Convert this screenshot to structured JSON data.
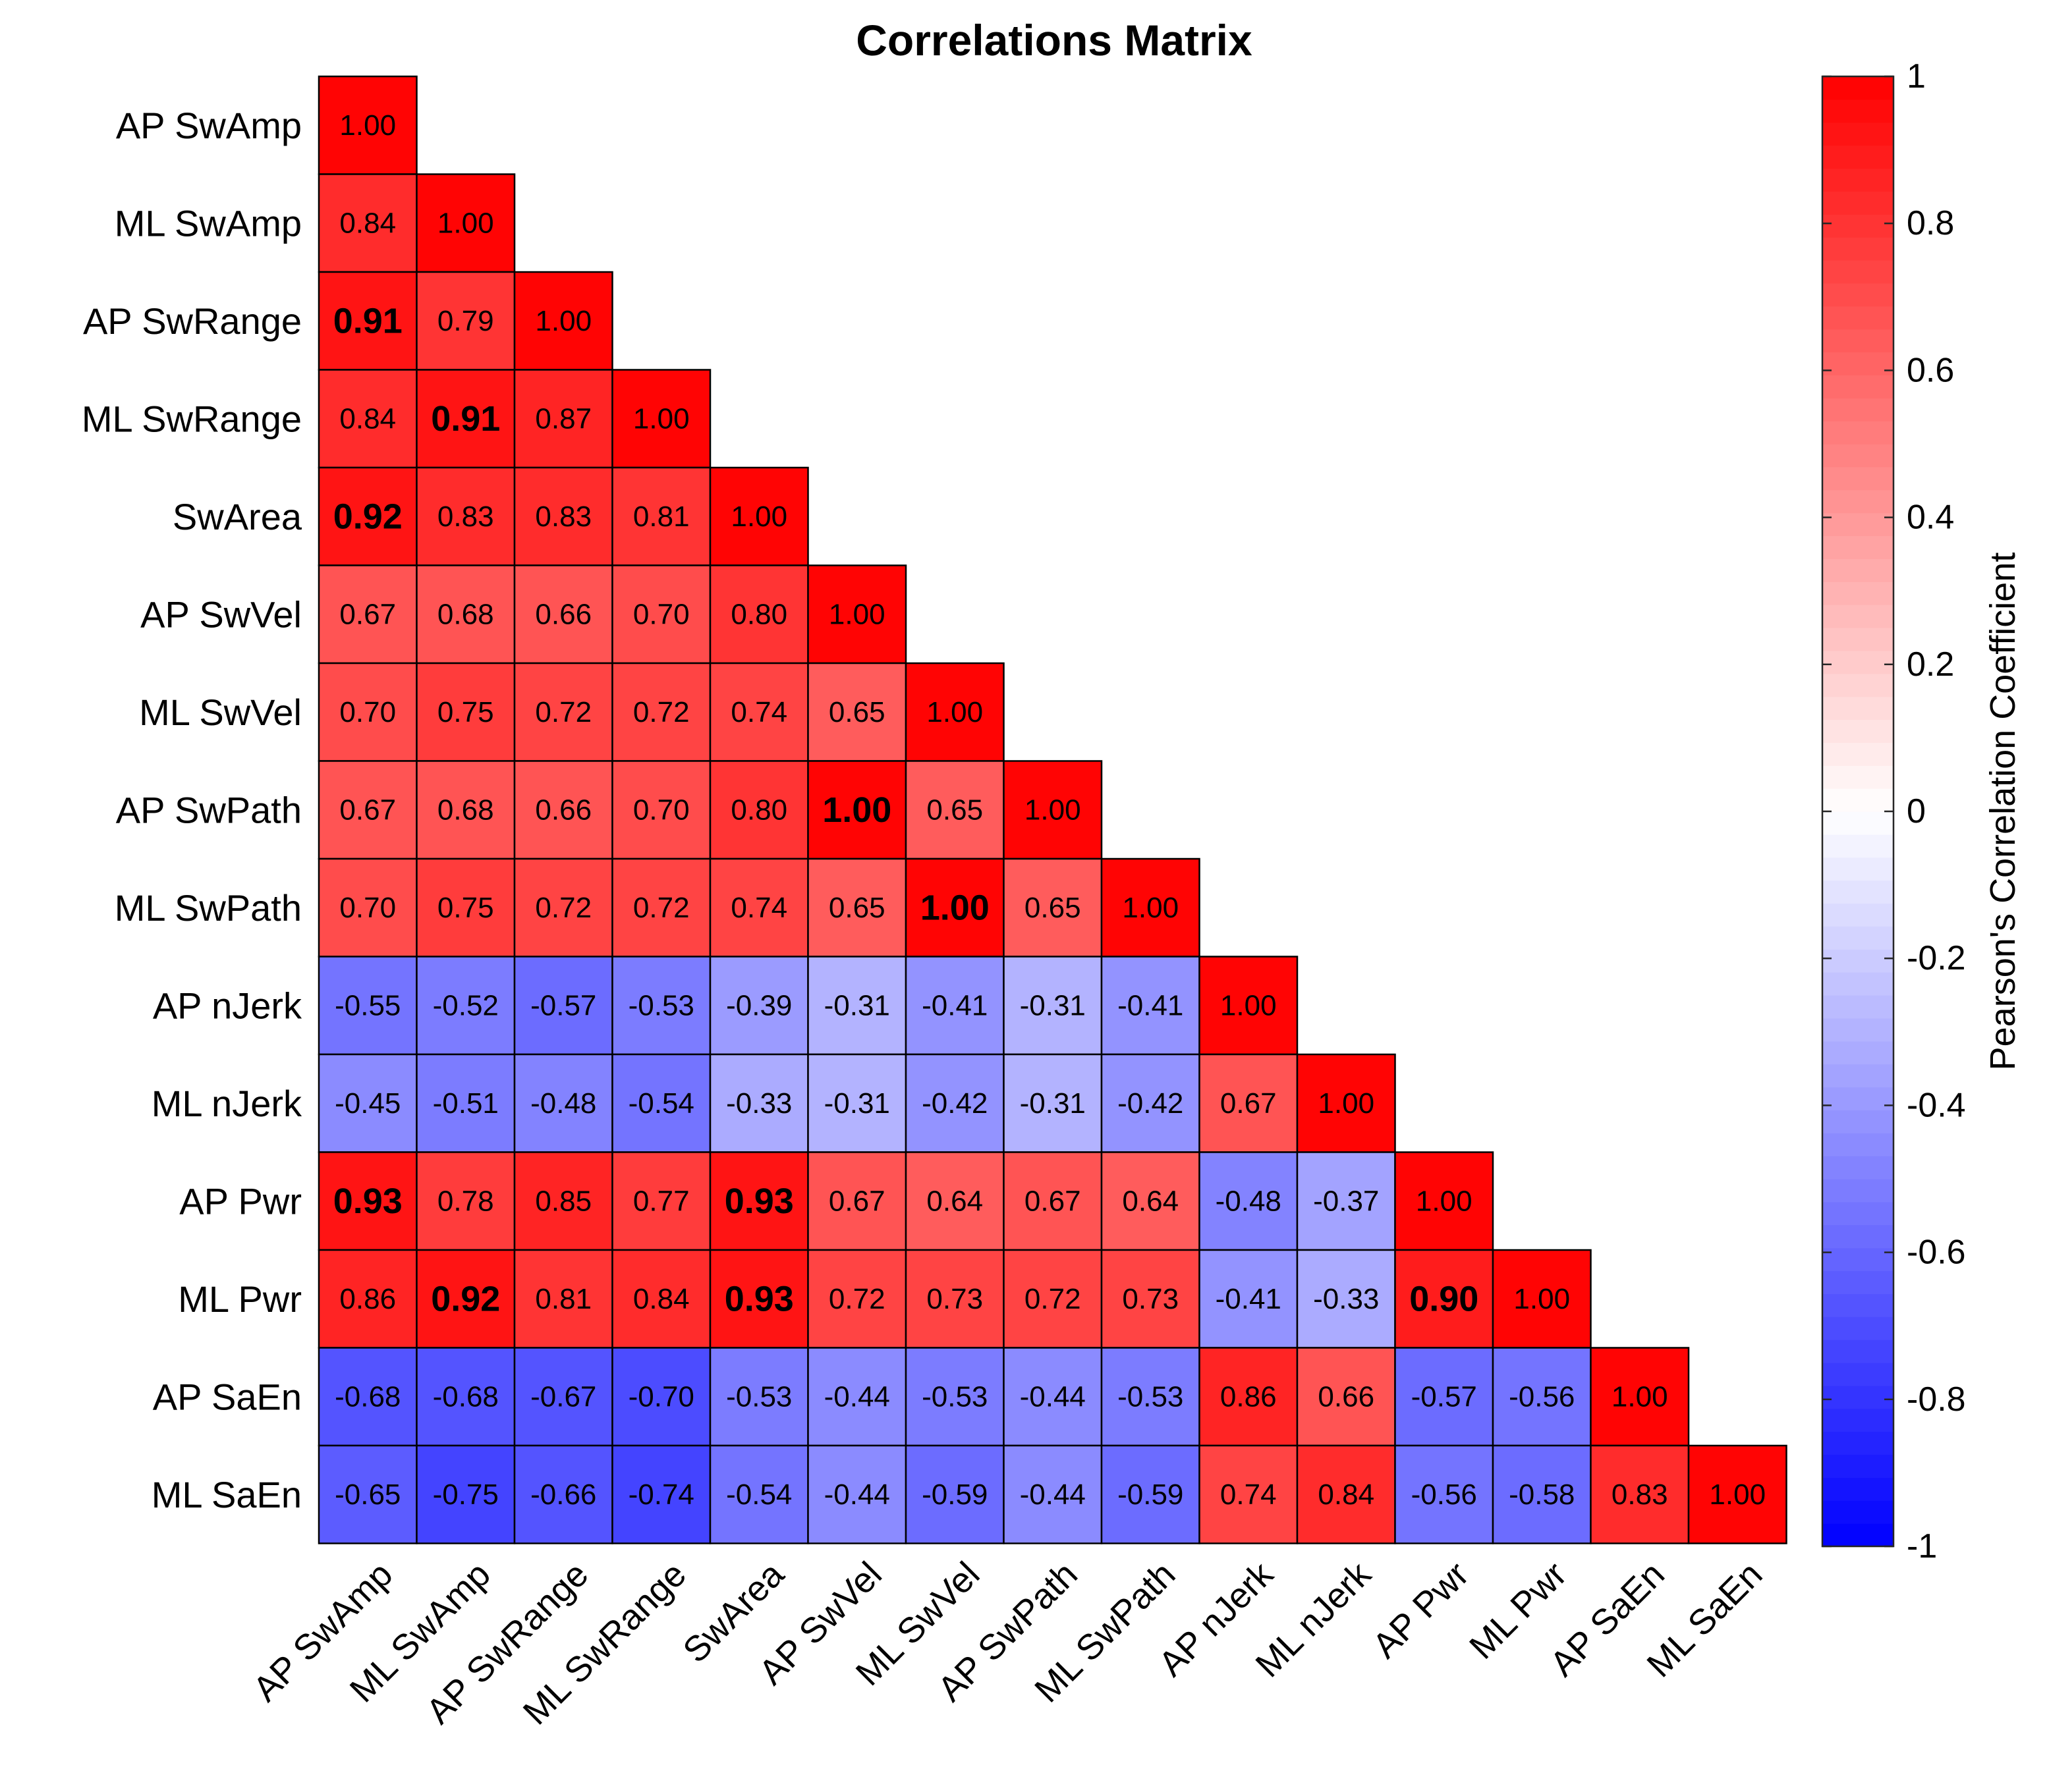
{
  "chart_data": {
    "type": "heatmap",
    "title": "Correlations Matrix",
    "variables": [
      "AP SwAmp",
      "ML SwAmp",
      "AP SwRange",
      "ML SwRange",
      "SwArea",
      "AP SwVel",
      "ML SwVel",
      "AP SwPath",
      "ML SwPath",
      "AP nJerk",
      "ML nJerk",
      "AP Pwr",
      "ML Pwr",
      "AP SaEn",
      "ML SaEn"
    ],
    "matrix": [
      [
        1.0
      ],
      [
        0.84,
        1.0
      ],
      [
        0.91,
        0.79,
        1.0
      ],
      [
        0.84,
        0.91,
        0.87,
        1.0
      ],
      [
        0.92,
        0.83,
        0.83,
        0.81,
        1.0
      ],
      [
        0.67,
        0.68,
        0.66,
        0.7,
        0.8,
        1.0
      ],
      [
        0.7,
        0.75,
        0.72,
        0.72,
        0.74,
        0.65,
        1.0
      ],
      [
        0.67,
        0.68,
        0.66,
        0.7,
        0.8,
        1.0,
        0.65,
        1.0
      ],
      [
        0.7,
        0.75,
        0.72,
        0.72,
        0.74,
        0.65,
        1.0,
        0.65,
        1.0
      ],
      [
        -0.55,
        -0.52,
        -0.57,
        -0.53,
        -0.39,
        -0.31,
        -0.41,
        -0.31,
        -0.41,
        1.0
      ],
      [
        -0.45,
        -0.51,
        -0.48,
        -0.54,
        -0.33,
        -0.31,
        -0.42,
        -0.31,
        -0.42,
        0.67,
        1.0
      ],
      [
        0.93,
        0.78,
        0.85,
        0.77,
        0.93,
        0.67,
        0.64,
        0.67,
        0.64,
        -0.48,
        -0.37,
        1.0
      ],
      [
        0.86,
        0.92,
        0.81,
        0.84,
        0.93,
        0.72,
        0.73,
        0.72,
        0.73,
        -0.41,
        -0.33,
        0.9,
        1.0
      ],
      [
        -0.68,
        -0.68,
        -0.67,
        -0.7,
        -0.53,
        -0.44,
        -0.53,
        -0.44,
        -0.53,
        0.86,
        0.66,
        -0.57,
        -0.56,
        1.0
      ],
      [
        -0.65,
        -0.75,
        -0.66,
        -0.74,
        -0.54,
        -0.44,
        -0.59,
        -0.44,
        -0.59,
        0.74,
        0.84,
        -0.56,
        -0.58,
        0.83,
        1.0
      ]
    ],
    "bold_cells": [
      [
        2,
        0
      ],
      [
        3,
        1
      ],
      [
        4,
        0
      ],
      [
        7,
        5
      ],
      [
        8,
        6
      ],
      [
        11,
        0
      ],
      [
        11,
        4
      ],
      [
        12,
        1
      ],
      [
        12,
        4
      ],
      [
        12,
        11
      ]
    ],
    "colorbar": {
      "label": "Pearson's Correlation Coefficient",
      "range": [
        -1,
        1
      ],
      "tick_values": [
        1,
        0.8,
        0.6,
        0.4,
        0.2,
        0,
        -0.2,
        -0.4,
        -0.6,
        -0.8,
        -1
      ],
      "tick_labels": [
        "1",
        "0.8",
        "0.6",
        "0.4",
        "0.2",
        "0",
        "-0.2",
        "-0.4",
        "-0.6",
        "-0.8",
        "-1"
      ],
      "levels": 64,
      "colors": {
        "low": "#0000ff",
        "mid": "#ffffff",
        "high": "#ff0000"
      }
    },
    "cell_border_color": "#000000"
  }
}
